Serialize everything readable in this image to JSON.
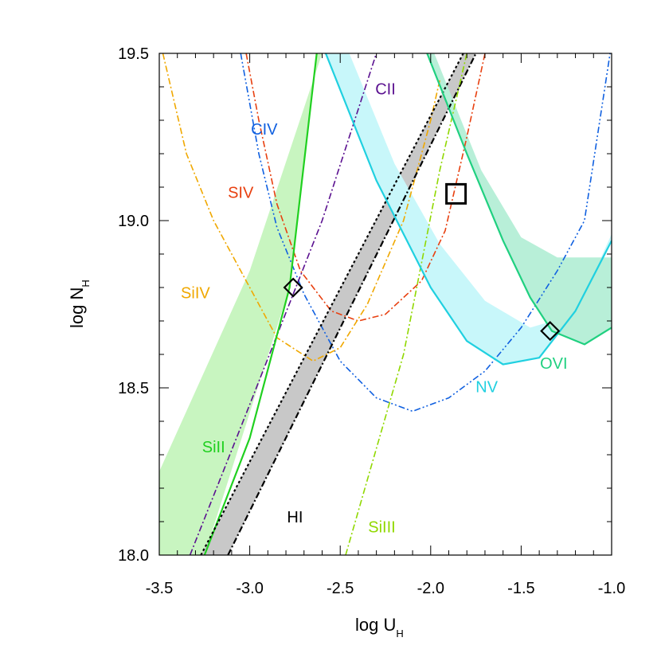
{
  "chart_data": {
    "type": "line",
    "title": "",
    "xlabel": {
      "main": "log U",
      "sub": "H"
    },
    "ylabel": {
      "main": "log N",
      "sub": "H"
    },
    "xlim": [
      -3.5,
      -1.0
    ],
    "ylim": [
      18.0,
      19.5
    ],
    "xticks": [
      {
        "value": -3.5,
        "label": "-3.5"
      },
      {
        "value": -3.0,
        "label": "-3.0"
      },
      {
        "value": -2.5,
        "label": "-2.5"
      },
      {
        "value": -2.0,
        "label": "-2.0"
      },
      {
        "value": -1.5,
        "label": "-1.5"
      },
      {
        "value": -1.0,
        "label": "-1.0"
      }
    ],
    "yticks": [
      {
        "value": 18.0,
        "label": "18.0"
      },
      {
        "value": 18.5,
        "label": "18.5"
      },
      {
        "value": 19.0,
        "label": "19.0"
      },
      {
        "value": 19.5,
        "label": "19.5"
      }
    ],
    "bands": [
      {
        "name": "SiII band",
        "color": "#c8f5c0",
        "lower": [
          [
            -3.5,
            18.25
          ],
          [
            -3.0,
            18.85
          ],
          [
            -2.6,
            19.5
          ]
        ],
        "upper": [
          [
            -3.5,
            18.0
          ],
          [
            -3.25,
            18.0
          ],
          [
            -2.78,
            18.8
          ],
          [
            -2.63,
            19.5
          ]
        ]
      },
      {
        "name": "HI band",
        "color": "#c8c8c8",
        "lower": [
          [
            -3.27,
            18.0
          ],
          [
            -1.82,
            19.5
          ]
        ],
        "upper": [
          [
            -3.12,
            18.0
          ],
          [
            -1.75,
            19.5
          ]
        ]
      },
      {
        "name": "NV band",
        "color": "#c8f7fa",
        "upper": [
          [
            -2.45,
            19.5
          ],
          [
            -2.2,
            19.17
          ],
          [
            -1.95,
            18.93
          ],
          [
            -1.7,
            18.76
          ],
          [
            -1.45,
            18.68
          ],
          [
            -1.2,
            18.72
          ],
          [
            -1.0,
            18.96
          ]
        ],
        "lower": [
          [
            -2.58,
            19.5
          ],
          [
            -2.3,
            19.12
          ],
          [
            -2.0,
            18.8
          ],
          [
            -1.8,
            18.64
          ],
          [
            -1.6,
            18.57
          ],
          [
            -1.4,
            18.59
          ],
          [
            -1.2,
            18.73
          ],
          [
            -1.0,
            18.94
          ]
        ]
      },
      {
        "name": "OVI band",
        "color": "#b8efd8",
        "upper": [
          [
            -1.98,
            19.5
          ],
          [
            -1.72,
            19.15
          ],
          [
            -1.5,
            18.95
          ],
          [
            -1.3,
            18.89
          ],
          [
            -1.0,
            18.89
          ]
        ],
        "lower": [
          [
            -2.02,
            19.5
          ],
          [
            -1.8,
            19.2
          ],
          [
            -1.6,
            18.94
          ],
          [
            -1.45,
            18.77
          ],
          [
            -1.33,
            18.67
          ],
          [
            -1.15,
            18.63
          ],
          [
            -1.0,
            18.68
          ]
        ]
      }
    ],
    "series": [
      {
        "name": "CIV",
        "color": "#1060e0",
        "dash": "8,3,2,3,2,3",
        "width": 1.6,
        "points": [
          [
            -3.05,
            19.5
          ],
          [
            -2.95,
            19.2
          ],
          [
            -2.85,
            18.98
          ],
          [
            -2.7,
            18.78
          ],
          [
            -2.5,
            18.58
          ],
          [
            -2.3,
            18.47
          ],
          [
            -2.1,
            18.43
          ],
          [
            -1.9,
            18.47
          ],
          [
            -1.7,
            18.55
          ],
          [
            -1.5,
            18.68
          ],
          [
            -1.3,
            18.85
          ],
          [
            -1.15,
            19.0
          ],
          [
            -1.0,
            19.53
          ]
        ]
      },
      {
        "name": "SIV",
        "color": "#e84010",
        "dash": "8,3,2,3",
        "width": 1.6,
        "points": [
          [
            -3.02,
            19.5
          ],
          [
            -2.95,
            19.3
          ],
          [
            -2.85,
            19.05
          ],
          [
            -2.72,
            18.85
          ],
          [
            -2.55,
            18.73
          ],
          [
            -2.4,
            18.7
          ],
          [
            -2.25,
            18.72
          ],
          [
            -2.05,
            18.82
          ],
          [
            -1.92,
            18.97
          ],
          [
            -1.8,
            19.25
          ],
          [
            -1.7,
            19.5
          ]
        ]
      },
      {
        "name": "SiIV",
        "color": "#f0a800",
        "dash": "8,3,2,3",
        "width": 1.6,
        "points": [
          [
            -3.48,
            19.5
          ],
          [
            -3.35,
            19.2
          ],
          [
            -3.2,
            19.0
          ],
          [
            -3.0,
            18.8
          ],
          [
            -2.85,
            18.65
          ],
          [
            -2.65,
            18.58
          ],
          [
            -2.5,
            18.62
          ],
          [
            -2.35,
            18.75
          ],
          [
            -2.15,
            19.0
          ],
          [
            -2.0,
            19.3
          ],
          [
            -1.95,
            19.42
          ]
        ]
      },
      {
        "name": "CII",
        "color": "#5a1090",
        "dash": "8,3,2,3",
        "width": 1.6,
        "points": [
          [
            -3.33,
            18.0
          ],
          [
            -3.0,
            18.45
          ],
          [
            -2.6,
            19.0
          ],
          [
            -2.3,
            19.5
          ]
        ]
      },
      {
        "name": "SiII",
        "color": "#20d020",
        "dash": "",
        "width": 2.2,
        "points": [
          [
            -3.25,
            18.0
          ],
          [
            -3.0,
            18.35
          ],
          [
            -2.78,
            18.8
          ],
          [
            -2.63,
            19.5
          ]
        ]
      },
      {
        "name": "HI",
        "color": "#000000",
        "dash": "3,3",
        "width": 2.2,
        "points": [
          [
            -3.27,
            18.0
          ],
          [
            -1.82,
            19.5
          ]
        ]
      },
      {
        "name": "HI",
        "color": "#000000",
        "dash": "8,3,2,3",
        "width": 2.2,
        "points": [
          [
            -3.12,
            18.0
          ],
          [
            -1.75,
            19.5
          ]
        ]
      },
      {
        "name": "SiIII",
        "color": "#90d800",
        "dash": "8,3,2,3",
        "width": 1.6,
        "points": [
          [
            -2.47,
            18.0
          ],
          [
            -2.15,
            18.6
          ],
          [
            -1.95,
            19.15
          ],
          [
            -1.8,
            19.5
          ]
        ]
      },
      {
        "name": "NV",
        "color": "#20d0e0",
        "dash": "",
        "width": 2.2,
        "points": [
          [
            -2.58,
            19.5
          ],
          [
            -2.3,
            19.12
          ],
          [
            -2.0,
            18.8
          ],
          [
            -1.8,
            18.64
          ],
          [
            -1.6,
            18.57
          ],
          [
            -1.4,
            18.59
          ],
          [
            -1.2,
            18.73
          ],
          [
            -1.0,
            18.94
          ]
        ]
      },
      {
        "name": "OVI",
        "color": "#20d080",
        "dash": "",
        "width": 2.2,
        "points": [
          [
            -2.02,
            19.5
          ],
          [
            -1.8,
            19.2
          ],
          [
            -1.6,
            18.94
          ],
          [
            -1.45,
            18.77
          ],
          [
            -1.33,
            18.67
          ],
          [
            -1.15,
            18.63
          ],
          [
            -1.0,
            18.68
          ]
        ]
      }
    ],
    "labels": [
      {
        "text": "CIV",
        "x": -2.92,
        "y": 19.27,
        "color": "#1060e0"
      },
      {
        "text": "SIV",
        "x": -3.05,
        "y": 19.08,
        "color": "#e84010"
      },
      {
        "text": "SiIV",
        "x": -3.3,
        "y": 18.78,
        "color": "#f0a800"
      },
      {
        "text": "CII",
        "x": -2.25,
        "y": 19.39,
        "color": "#5a1090"
      },
      {
        "text": "SiII",
        "x": -3.2,
        "y": 18.32,
        "color": "#20d020"
      },
      {
        "text": "HI",
        "x": -2.75,
        "y": 18.11,
        "color": "#000000"
      },
      {
        "text": "SiIII",
        "x": -2.27,
        "y": 18.08,
        "color": "#90d800"
      },
      {
        "text": "NV",
        "x": -1.69,
        "y": 18.5,
        "color": "#20d0e0"
      },
      {
        "text": "OVI",
        "x": -1.32,
        "y": 18.57,
        "color": "#20d080"
      }
    ],
    "markers": [
      {
        "shape": "diamond",
        "x": -2.76,
        "y": 18.8
      },
      {
        "shape": "diamond",
        "x": -1.34,
        "y": 18.67
      },
      {
        "shape": "square",
        "x": -1.86,
        "y": 19.08
      }
    ]
  }
}
